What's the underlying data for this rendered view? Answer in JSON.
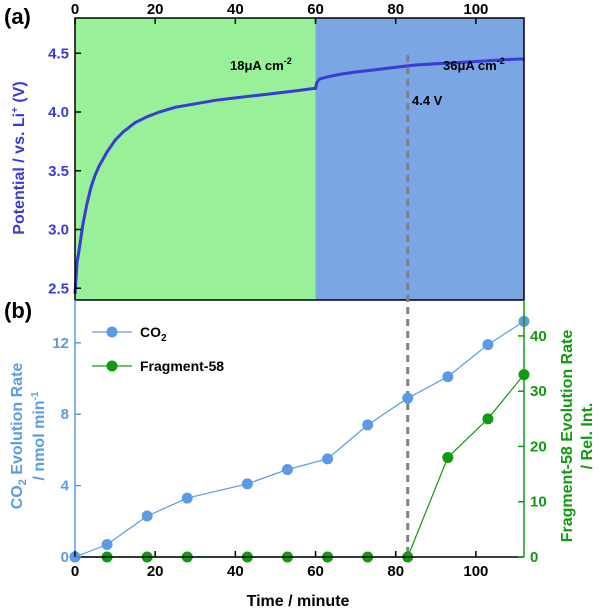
{
  "colors": {
    "green_region": "#98f098",
    "blue_region": "#7aa6e4",
    "potential_line": "#3a3ad6",
    "co2": "#5b9be6",
    "fragment58": "#0f9a0f",
    "guide_line": "#808080",
    "axis": "#000000"
  },
  "chart_data": [
    {
      "panel_label": "(a)",
      "type": "line",
      "ylabel_main": "Potential / vs. Li",
      "ylabel_sup": "+",
      "ylabel_tail": " (V)",
      "xlim": [
        0,
        112
      ],
      "ylim": [
        2.4,
        4.8
      ],
      "x_ticks": [
        "0",
        "20",
        "40",
        "60",
        "80",
        "100"
      ],
      "y_ticks": [
        "2.5",
        "3.0",
        "3.5",
        "4.0",
        "4.5"
      ],
      "regions": [
        {
          "x_from": 0,
          "x_to": 60,
          "color": "green",
          "label_main": "18μA cm",
          "label_sup": "-2"
        },
        {
          "x_from": 60,
          "x_to": 112,
          "color": "blue",
          "label_main": "36μA cm",
          "label_sup": "-2"
        }
      ],
      "annotation": "4.4 V",
      "series": [
        {
          "x": [
            0,
            0.5,
            1,
            2,
            3,
            4,
            5,
            6,
            8,
            10,
            12,
            15,
            18,
            21,
            25,
            30,
            35,
            40,
            45,
            50,
            55,
            59.5,
            60,
            60.3,
            61,
            63,
            66,
            70,
            75,
            80,
            85,
            90,
            95,
            100,
            105,
            110,
            112
          ],
          "y": [
            2.45,
            2.72,
            2.82,
            3.05,
            3.22,
            3.36,
            3.46,
            3.54,
            3.66,
            3.76,
            3.83,
            3.91,
            3.96,
            4.0,
            4.04,
            4.07,
            4.1,
            4.12,
            4.14,
            4.16,
            4.18,
            4.2,
            4.2,
            4.25,
            4.28,
            4.3,
            4.32,
            4.34,
            4.36,
            4.38,
            4.4,
            4.41,
            4.42,
            4.43,
            4.44,
            4.45,
            4.45
          ]
        }
      ]
    },
    {
      "panel_label": "(b)",
      "type": "line",
      "xlabel": "Time / minute",
      "ylabel_left_main": "CO",
      "ylabel_left_sub": "2",
      "ylabel_left_tail": " Evolution Rate",
      "ylabel_left_line2": "/ nmol min",
      "ylabel_left_line2_sup": "-1",
      "ylabel_right_line1": "Fragment-58 Evolution Rate",
      "ylabel_right_line2": "/ Rel. Int.",
      "xlim": [
        0,
        112
      ],
      "ylim_left": [
        0,
        14.4
      ],
      "ylim_right": [
        0,
        46.5
      ],
      "x_ticks": [
        "0",
        "20",
        "40",
        "60",
        "80",
        "100"
      ],
      "y_ticks_left": [
        "0",
        "4",
        "8",
        "12"
      ],
      "y_ticks_right": [
        "0",
        "10",
        "20",
        "30",
        "40"
      ],
      "series": [
        {
          "name_main": "CO",
          "name_sub": "2",
          "axis": "left",
          "x": [
            0,
            8,
            18,
            28,
            43,
            53,
            63,
            73,
            83,
            93,
            103,
            112
          ],
          "y": [
            0,
            0.7,
            2.3,
            3.3,
            4.1,
            4.9,
            5.5,
            7.4,
            8.9,
            10.1,
            11.9,
            13.2
          ]
        },
        {
          "name": "Fragment-58",
          "axis": "right",
          "x": [
            0,
            8,
            18,
            28,
            43,
            53,
            63,
            73,
            83,
            93,
            103,
            112
          ],
          "y": [
            0,
            0,
            0,
            0,
            0,
            0,
            0,
            0,
            0,
            18,
            25,
            33
          ]
        }
      ],
      "guide_x": 83
    }
  ]
}
